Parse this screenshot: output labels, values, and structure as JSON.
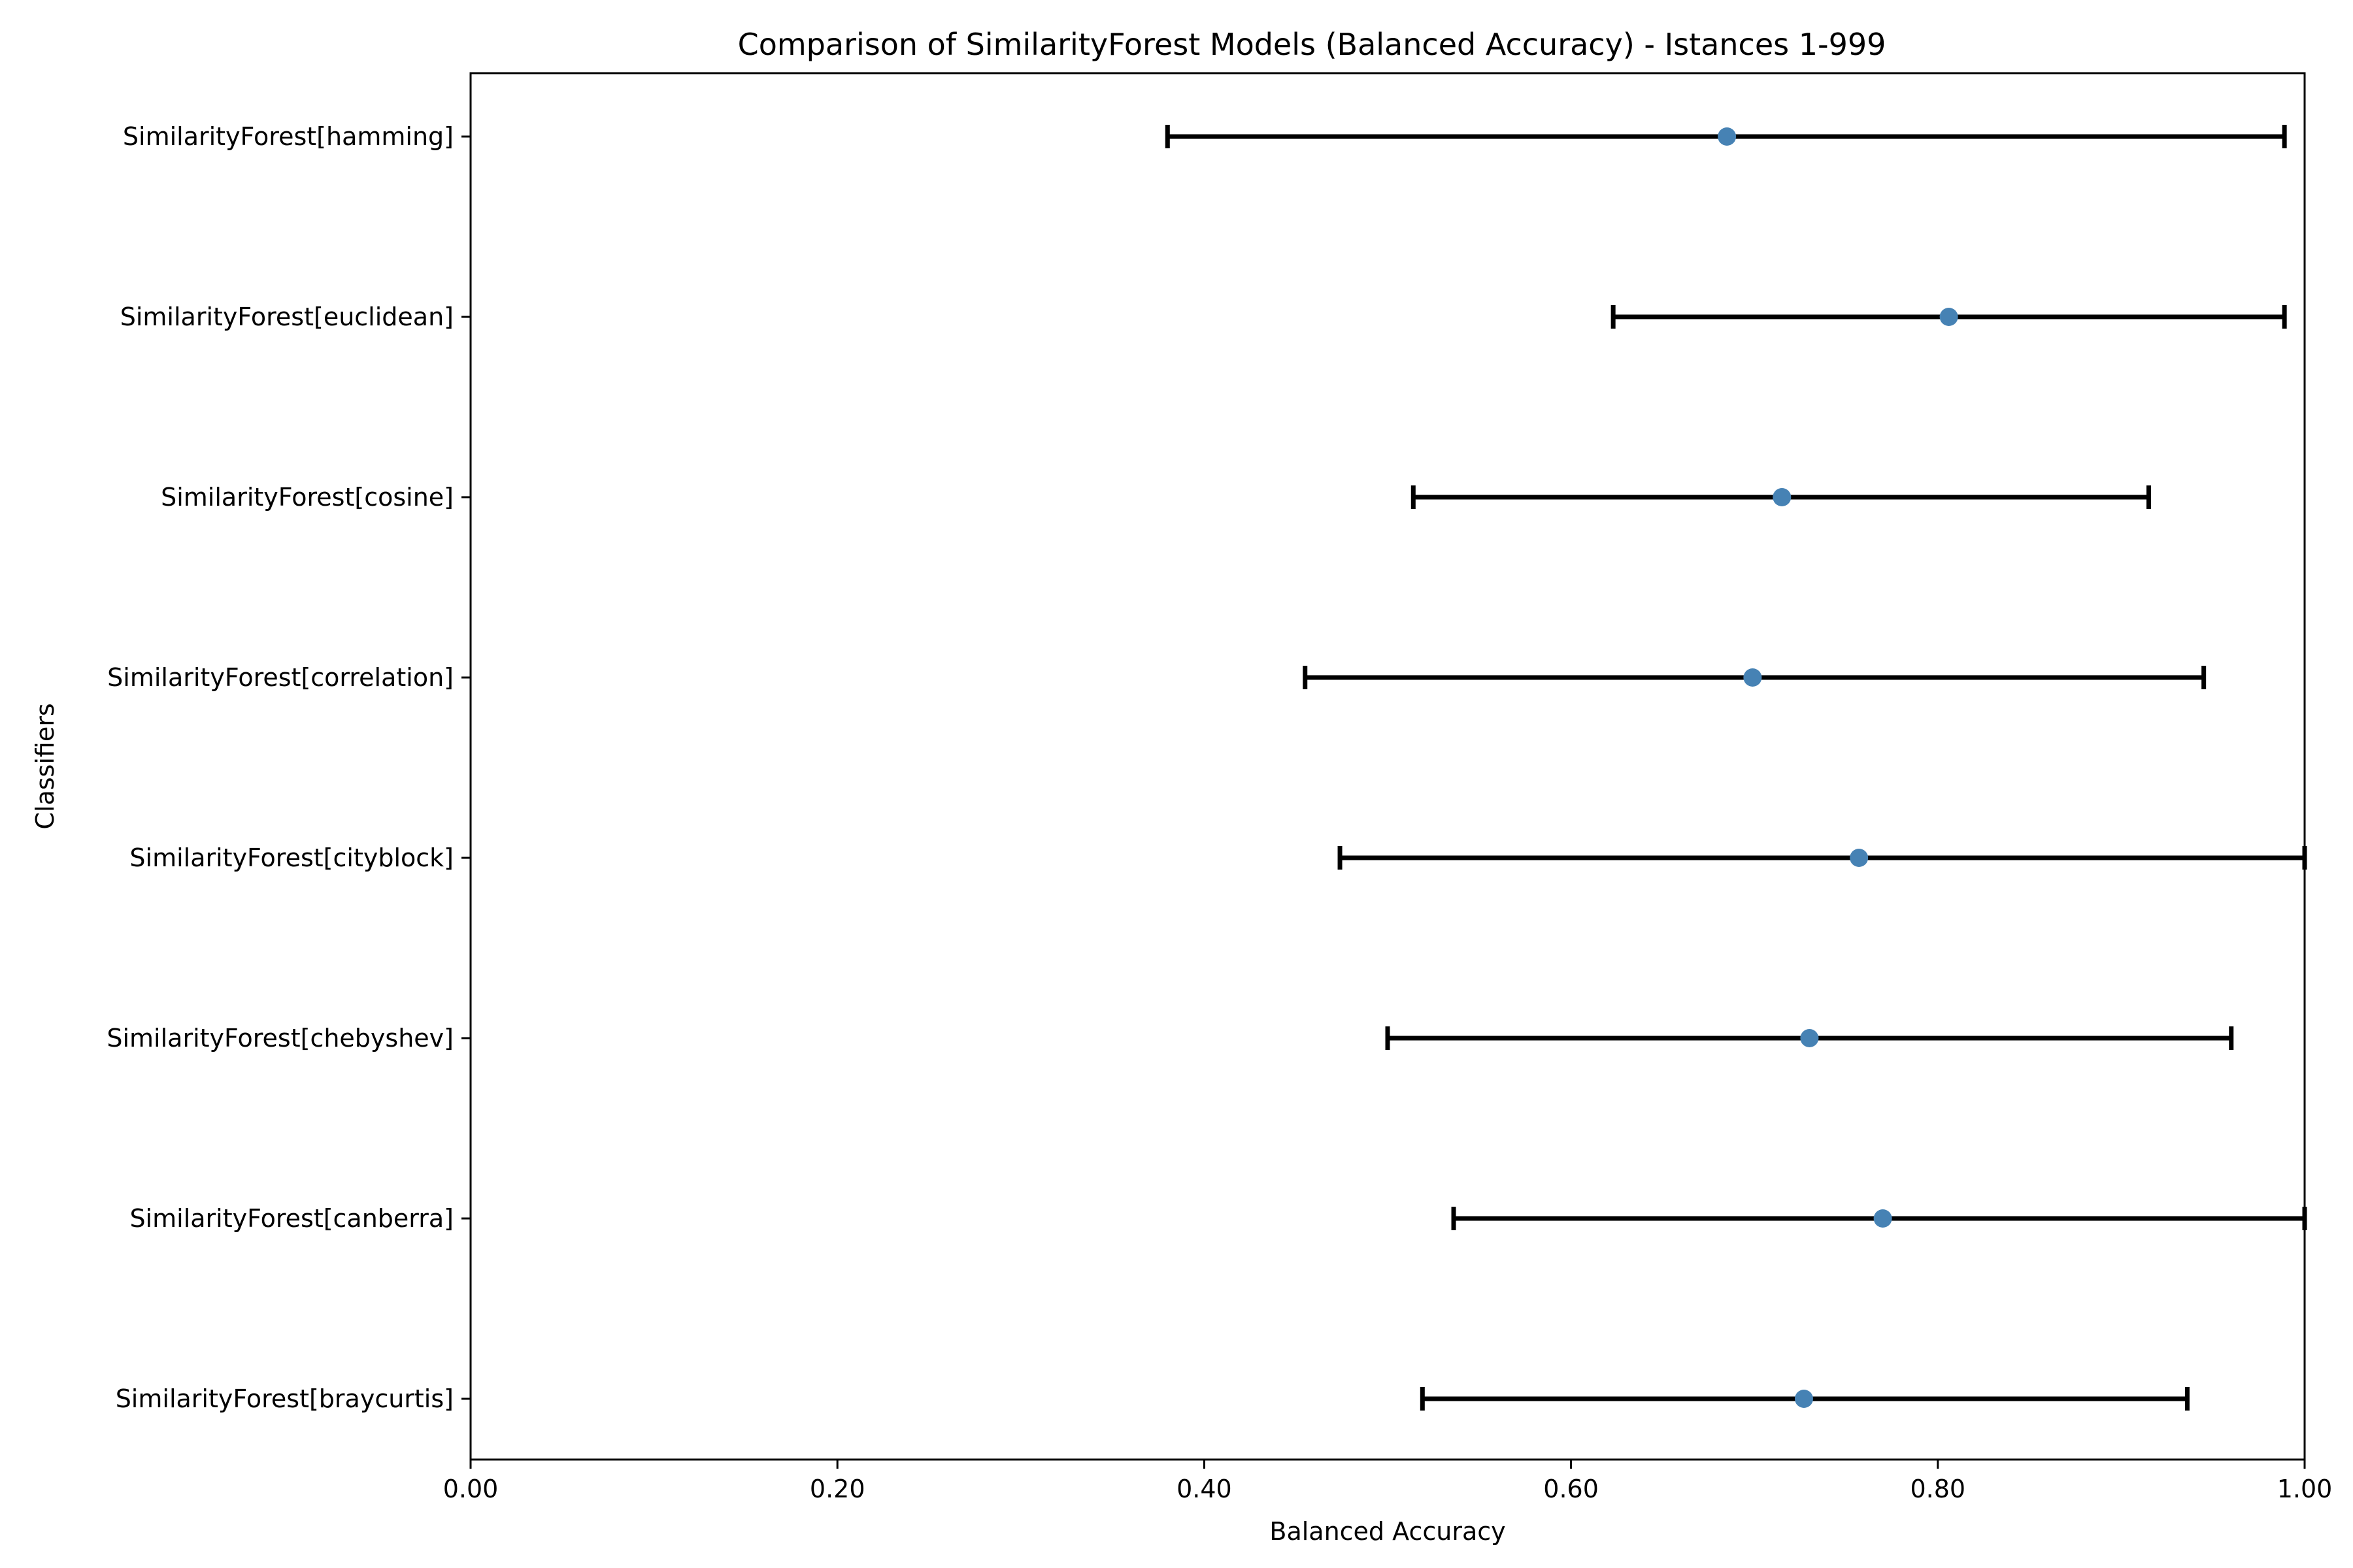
{
  "chart_data": {
    "type": "scatter",
    "title": "Comparison of SimilarityForest Models (Balanced Accuracy) - Istances 1-999",
    "xlabel": "Balanced Accuracy",
    "ylabel": "Classifiers",
    "xlim": [
      0.0,
      1.0
    ],
    "xticks": [
      "0.00",
      "0.20",
      "0.40",
      "0.60",
      "0.80",
      "1.00"
    ],
    "grid": false,
    "marker_color": "#4682b4",
    "errorbar_color": "#000000",
    "categories": [
      "SimilarityForest[hamming]",
      "SimilarityForest[euclidean]",
      "SimilarityForest[cosine]",
      "SimilarityForest[correlation]",
      "SimilarityForest[cityblock]",
      "SimilarityForest[chebyshev]",
      "SimilarityForest[canberra]",
      "SimilarityForest[braycurtis]"
    ],
    "values": [
      0.685,
      0.806,
      0.715,
      0.699,
      0.757,
      0.73,
      0.77,
      0.727
    ],
    "lower": [
      0.38,
      0.623,
      0.514,
      0.455,
      0.474,
      0.5,
      0.536,
      0.519
    ],
    "upper": [
      0.989,
      0.989,
      0.915,
      0.945,
      1.0,
      0.96,
      1.0,
      0.936
    ]
  }
}
